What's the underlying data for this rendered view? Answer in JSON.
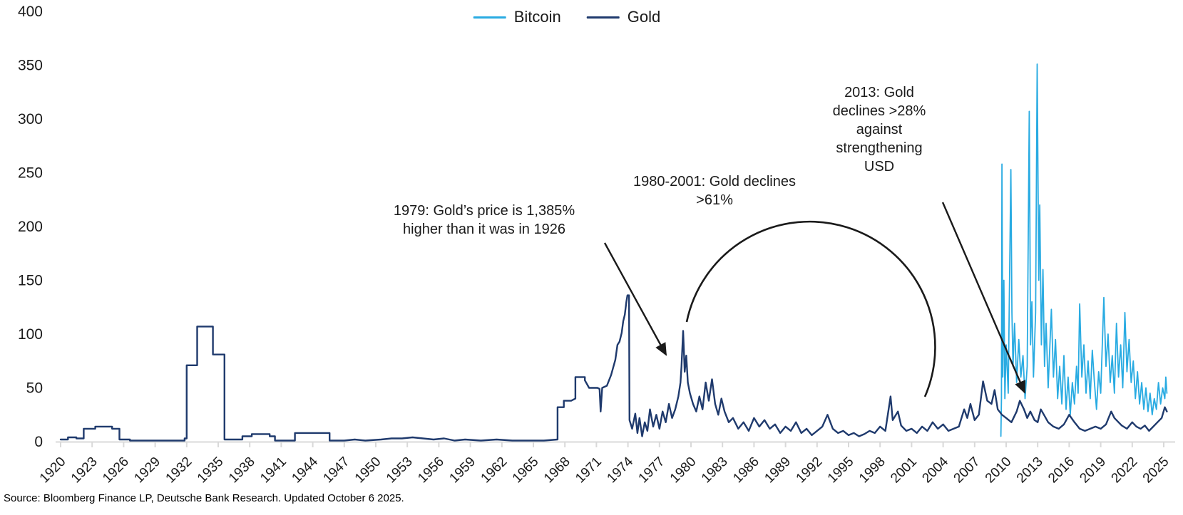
{
  "source_note": "Source: Bloomberg Finance LP, Deutsche Bank Research. Updated October 6 2025.",
  "chart_data": {
    "type": "line",
    "grid": false,
    "legend_position": "top-center",
    "axis_color": "#D9D9D9",
    "text_color": "#1A1A1A",
    "x_range": [
      1920,
      2025
    ],
    "y_range": [
      0,
      400
    ],
    "x_ticks": [
      1920,
      1923,
      1926,
      1929,
      1932,
      1935,
      1938,
      1941,
      1944,
      1947,
      1950,
      1953,
      1956,
      1959,
      1962,
      1965,
      1968,
      1971,
      1974,
      1977,
      1980,
      1983,
      1986,
      1989,
      1992,
      1995,
      1998,
      2001,
      2004,
      2007,
      2010,
      2013,
      2016,
      2019,
      2022,
      2025
    ],
    "y_ticks": [
      0,
      50,
      100,
      150,
      200,
      250,
      300,
      350,
      400
    ],
    "annotations": [
      {
        "id": "gold-1979",
        "text": "1979: Gold’s price is 1,385%\nhigher than it was in 1926",
        "points_to": "1979 gold spike"
      },
      {
        "id": "gold-1980-2001",
        "text": "1980-2001: Gold declines\n>61%",
        "points_to": "circled 1980-2001 region"
      },
      {
        "id": "gold-2013",
        "text": "2013: Gold\ndeclines >28%\nagainst\nstrengthening\nUSD",
        "points_to": "2013 gold decline"
      }
    ],
    "series": [
      {
        "name": "Bitcoin",
        "color": "#29ABE2",
        "points": [
          [
            2009.5,
            5
          ],
          [
            2009.55,
            40
          ],
          [
            2009.6,
            258
          ],
          [
            2009.68,
            60
          ],
          [
            2009.78,
            150
          ],
          [
            2009.88,
            40
          ],
          [
            2010.0,
            90
          ],
          [
            2010.2,
            45
          ],
          [
            2010.45,
            253
          ],
          [
            2010.55,
            120
          ],
          [
            2010.65,
            70
          ],
          [
            2010.8,
            110
          ],
          [
            2011.0,
            55
          ],
          [
            2011.2,
            95
          ],
          [
            2011.4,
            60
          ],
          [
            2011.6,
            80
          ],
          [
            2011.8,
            40
          ],
          [
            2012.0,
            70
          ],
          [
            2012.2,
            307
          ],
          [
            2012.32,
            90
          ],
          [
            2012.45,
            130
          ],
          [
            2012.6,
            60
          ],
          [
            2012.8,
            120
          ],
          [
            2012.95,
            351
          ],
          [
            2013.1,
            150
          ],
          [
            2013.2,
            220
          ],
          [
            2013.35,
            90
          ],
          [
            2013.5,
            160
          ],
          [
            2013.65,
            70
          ],
          [
            2013.8,
            110
          ],
          [
            2014.0,
            50
          ],
          [
            2014.3,
            123
          ],
          [
            2014.5,
            60
          ],
          [
            2014.7,
            95
          ],
          [
            2014.9,
            40
          ],
          [
            2015.1,
            70
          ],
          [
            2015.3,
            35
          ],
          [
            2015.5,
            80
          ],
          [
            2015.7,
            30
          ],
          [
            2015.9,
            60
          ],
          [
            2016.1,
            25
          ],
          [
            2016.3,
            55
          ],
          [
            2016.5,
            35
          ],
          [
            2016.7,
            70
          ],
          [
            2016.85,
            45
          ],
          [
            2017.0,
            128
          ],
          [
            2017.2,
            60
          ],
          [
            2017.4,
            90
          ],
          [
            2017.6,
            45
          ],
          [
            2017.8,
            75
          ],
          [
            2018.0,
            40
          ],
          [
            2018.2,
            85
          ],
          [
            2018.4,
            55
          ],
          [
            2018.6,
            30
          ],
          [
            2018.8,
            65
          ],
          [
            2019.0,
            45
          ],
          [
            2019.3,
            134
          ],
          [
            2019.5,
            70
          ],
          [
            2019.7,
            100
          ],
          [
            2019.9,
            55
          ],
          [
            2020.1,
            80
          ],
          [
            2020.3,
            45
          ],
          [
            2020.5,
            110
          ],
          [
            2020.7,
            60
          ],
          [
            2020.9,
            90
          ],
          [
            2021.1,
            50
          ],
          [
            2021.3,
            120
          ],
          [
            2021.5,
            65
          ],
          [
            2021.7,
            95
          ],
          [
            2021.9,
            55
          ],
          [
            2022.1,
            75
          ],
          [
            2022.3,
            40
          ],
          [
            2022.5,
            65
          ],
          [
            2022.7,
            35
          ],
          [
            2022.9,
            55
          ],
          [
            2023.1,
            30
          ],
          [
            2023.3,
            50
          ],
          [
            2023.5,
            28
          ],
          [
            2023.7,
            45
          ],
          [
            2023.9,
            25
          ],
          [
            2024.1,
            40
          ],
          [
            2024.3,
            30
          ],
          [
            2024.5,
            55
          ],
          [
            2024.7,
            35
          ],
          [
            2024.9,
            50
          ],
          [
            2025.1,
            40
          ],
          [
            2025.2,
            60
          ],
          [
            2025.3,
            45
          ]
        ]
      },
      {
        "name": "Gold",
        "color": "#1F3A6D",
        "points": [
          [
            1920.0,
            2
          ],
          [
            1920.7,
            2
          ],
          [
            1920.7,
            4
          ],
          [
            1921.5,
            4
          ],
          [
            1921.5,
            3
          ],
          [
            1922.2,
            3
          ],
          [
            1922.2,
            12
          ],
          [
            1923.3,
            12
          ],
          [
            1923.3,
            14
          ],
          [
            1924.9,
            14
          ],
          [
            1924.9,
            12
          ],
          [
            1925.6,
            12
          ],
          [
            1925.6,
            2
          ],
          [
            1926.6,
            2
          ],
          [
            1926.6,
            1
          ],
          [
            1931.8,
            1
          ],
          [
            1931.8,
            3
          ],
          [
            1932.0,
            3
          ],
          [
            1932.0,
            71
          ],
          [
            1933.0,
            71
          ],
          [
            1933.0,
            107
          ],
          [
            1934.5,
            107
          ],
          [
            1934.5,
            81
          ],
          [
            1935.6,
            81
          ],
          [
            1935.6,
            2
          ],
          [
            1937.3,
            2
          ],
          [
            1937.3,
            5
          ],
          [
            1938.2,
            5
          ],
          [
            1938.2,
            7
          ],
          [
            1939.9,
            7
          ],
          [
            1939.9,
            5
          ],
          [
            1940.4,
            5
          ],
          [
            1940.4,
            1
          ],
          [
            1942.3,
            1
          ],
          [
            1942.3,
            8
          ],
          [
            1945.6,
            8
          ],
          [
            1945.6,
            1
          ],
          [
            1947.0,
            1
          ],
          [
            1948.0,
            2
          ],
          [
            1949.0,
            1
          ],
          [
            1950.5,
            2
          ],
          [
            1951.5,
            3
          ],
          [
            1952.5,
            3
          ],
          [
            1953.5,
            4
          ],
          [
            1954.5,
            3
          ],
          [
            1955.5,
            2
          ],
          [
            1956.5,
            3
          ],
          [
            1957.5,
            1
          ],
          [
            1958.5,
            2
          ],
          [
            1960.0,
            1
          ],
          [
            1961.5,
            2
          ],
          [
            1963.0,
            1
          ],
          [
            1964.5,
            1
          ],
          [
            1966.0,
            1
          ],
          [
            1967.3,
            2
          ],
          [
            1967.3,
            32
          ],
          [
            1967.9,
            32
          ],
          [
            1967.9,
            38
          ],
          [
            1968.6,
            38
          ],
          [
            1969.0,
            40
          ],
          [
            1969.0,
            60
          ],
          [
            1969.9,
            60
          ],
          [
            1969.9,
            57
          ],
          [
            1970.3,
            50
          ],
          [
            1971.1,
            50
          ],
          [
            1971.3,
            49
          ],
          [
            1971.4,
            28
          ],
          [
            1971.55,
            50
          ],
          [
            1972.0,
            52
          ],
          [
            1972.4,
            62
          ],
          [
            1972.8,
            76
          ],
          [
            1973.0,
            90
          ],
          [
            1973.2,
            93
          ],
          [
            1973.4,
            101
          ],
          [
            1973.55,
            112
          ],
          [
            1973.7,
            118
          ],
          [
            1973.85,
            130
          ],
          [
            1973.95,
            136
          ],
          [
            1974.1,
            136
          ],
          [
            1974.15,
            20
          ],
          [
            1974.4,
            12
          ],
          [
            1974.7,
            26
          ],
          [
            1974.9,
            8
          ],
          [
            1975.1,
            22
          ],
          [
            1975.35,
            5
          ],
          [
            1975.6,
            18
          ],
          [
            1975.85,
            10
          ],
          [
            1976.1,
            30
          ],
          [
            1976.4,
            14
          ],
          [
            1976.7,
            25
          ],
          [
            1977.0,
            12
          ],
          [
            1977.3,
            28
          ],
          [
            1977.6,
            18
          ],
          [
            1977.9,
            35
          ],
          [
            1978.2,
            22
          ],
          [
            1978.5,
            30
          ],
          [
            1978.8,
            42
          ],
          [
            1979.0,
            55
          ],
          [
            1979.1,
            70
          ],
          [
            1979.25,
            103
          ],
          [
            1979.4,
            65
          ],
          [
            1979.55,
            80
          ],
          [
            1979.7,
            55
          ],
          [
            1979.9,
            45
          ],
          [
            1980.2,
            35
          ],
          [
            1980.5,
            28
          ],
          [
            1980.8,
            42
          ],
          [
            1981.1,
            30
          ],
          [
            1981.4,
            55
          ],
          [
            1981.7,
            38
          ],
          [
            1982.0,
            58
          ],
          [
            1982.3,
            35
          ],
          [
            1982.6,
            25
          ],
          [
            1982.9,
            40
          ],
          [
            1983.2,
            28
          ],
          [
            1983.6,
            18
          ],
          [
            1984.0,
            22
          ],
          [
            1984.5,
            12
          ],
          [
            1985.0,
            18
          ],
          [
            1985.5,
            10
          ],
          [
            1986.0,
            22
          ],
          [
            1986.5,
            14
          ],
          [
            1987.0,
            20
          ],
          [
            1987.5,
            12
          ],
          [
            1988.0,
            16
          ],
          [
            1988.5,
            8
          ],
          [
            1989.0,
            14
          ],
          [
            1989.5,
            10
          ],
          [
            1990.0,
            18
          ],
          [
            1990.5,
            8
          ],
          [
            1991.0,
            12
          ],
          [
            1991.5,
            6
          ],
          [
            1992.0,
            10
          ],
          [
            1992.5,
            14
          ],
          [
            1993.0,
            25
          ],
          [
            1993.5,
            12
          ],
          [
            1994.0,
            8
          ],
          [
            1994.5,
            10
          ],
          [
            1995.0,
            6
          ],
          [
            1995.5,
            8
          ],
          [
            1996.0,
            5
          ],
          [
            1996.5,
            7
          ],
          [
            1997.0,
            10
          ],
          [
            1997.5,
            8
          ],
          [
            1998.0,
            14
          ],
          [
            1998.5,
            10
          ],
          [
            1999.0,
            42
          ],
          [
            1999.2,
            20
          ],
          [
            1999.7,
            28
          ],
          [
            2000.0,
            15
          ],
          [
            2000.5,
            10
          ],
          [
            2001.0,
            12
          ],
          [
            2001.5,
            8
          ],
          [
            2002.0,
            14
          ],
          [
            2002.5,
            10
          ],
          [
            2003.0,
            18
          ],
          [
            2003.5,
            12
          ],
          [
            2004.0,
            16
          ],
          [
            2004.5,
            10
          ],
          [
            2005.0,
            12
          ],
          [
            2005.5,
            14
          ],
          [
            2006.0,
            30
          ],
          [
            2006.3,
            22
          ],
          [
            2006.6,
            35
          ],
          [
            2007.0,
            20
          ],
          [
            2007.4,
            25
          ],
          [
            2007.8,
            56
          ],
          [
            2008.2,
            38
          ],
          [
            2008.6,
            35
          ],
          [
            2008.9,
            48
          ],
          [
            2009.2,
            30
          ],
          [
            2009.6,
            25
          ],
          [
            2010.0,
            22
          ],
          [
            2010.5,
            18
          ],
          [
            2011.0,
            28
          ],
          [
            2011.3,
            38
          ],
          [
            2011.7,
            30
          ],
          [
            2012.0,
            22
          ],
          [
            2012.3,
            28
          ],
          [
            2012.7,
            20
          ],
          [
            2013.0,
            18
          ],
          [
            2013.3,
            30
          ],
          [
            2013.6,
            25
          ],
          [
            2014.0,
            18
          ],
          [
            2014.5,
            14
          ],
          [
            2015.0,
            12
          ],
          [
            2015.5,
            16
          ],
          [
            2016.0,
            25
          ],
          [
            2016.5,
            18
          ],
          [
            2017.0,
            12
          ],
          [
            2017.5,
            10
          ],
          [
            2018.0,
            12
          ],
          [
            2018.5,
            14
          ],
          [
            2019.0,
            12
          ],
          [
            2019.5,
            16
          ],
          [
            2020.0,
            28
          ],
          [
            2020.3,
            22
          ],
          [
            2020.7,
            18
          ],
          [
            2021.0,
            15
          ],
          [
            2021.5,
            12
          ],
          [
            2022.0,
            18
          ],
          [
            2022.4,
            14
          ],
          [
            2022.8,
            12
          ],
          [
            2023.2,
            15
          ],
          [
            2023.6,
            10
          ],
          [
            2024.0,
            14
          ],
          [
            2024.4,
            18
          ],
          [
            2024.8,
            22
          ],
          [
            2025.1,
            32
          ],
          [
            2025.3,
            28
          ]
        ]
      }
    ]
  }
}
